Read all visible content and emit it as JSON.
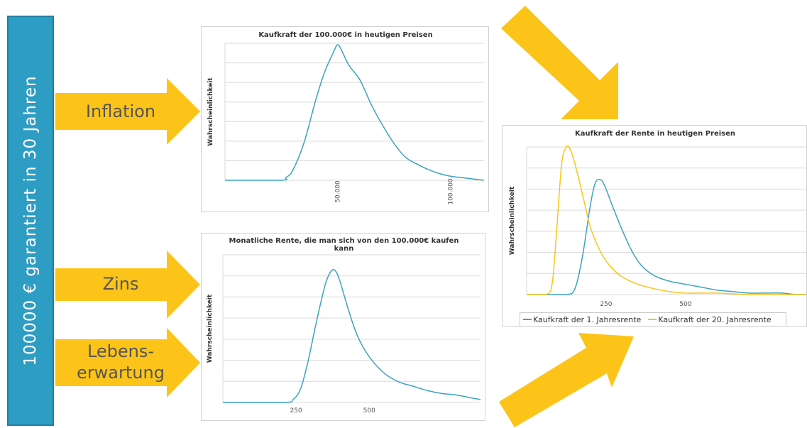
{
  "sidebar": {
    "text": "100000 €  garantiert in 30 Jahren"
  },
  "labels": {
    "inflation": "Inflation",
    "zins": "Zins",
    "lebenserwartung_1": "Lebens-",
    "lebenserwartung_2": "erwartung"
  },
  "colors": {
    "sidebar": "#2e9dc4",
    "arrow": "#fcc419",
    "blue_curve": "#3aa4bf",
    "yellow_curve": "#fcc419",
    "label": "#555555"
  },
  "chart_data": [
    {
      "type": "line",
      "title": "Kaufkraft der 100.000€ in heutigen Preisen",
      "xlabel": "",
      "ylabel": "Wahrscheinlichkeit",
      "xlim": [
        0,
        115000
      ],
      "ylim": [
        0,
        1.0
      ],
      "x_ticks": [
        50000,
        100000
      ],
      "x_tick_labels": [
        "50.000",
        "100.000"
      ],
      "gridlines": "horizontal",
      "series": [
        {
          "color": "#3aa4bf",
          "x": [
            0,
            25000,
            27000,
            30000,
            35000,
            40000,
            44000,
            48000,
            50000,
            52000,
            55000,
            60000,
            65000,
            70000,
            75000,
            80000,
            85000,
            90000,
            95000,
            100000,
            105000,
            110000,
            115000
          ],
          "y": [
            0,
            0,
            0.02,
            0.07,
            0.27,
            0.57,
            0.78,
            0.93,
            0.99,
            0.94,
            0.84,
            0.73,
            0.55,
            0.4,
            0.27,
            0.17,
            0.12,
            0.08,
            0.05,
            0.03,
            0.02,
            0.01,
            0.0
          ]
        }
      ]
    },
    {
      "type": "line",
      "title": "Monatliche Rente, die man sich von den 100.000€ kaufen kann",
      "xlabel": "",
      "ylabel": "Wahrscheinlichkeit",
      "xlim": [
        0,
        880
      ],
      "ylim": [
        0,
        1.0
      ],
      "x_ticks": [
        250,
        500
      ],
      "x_tick_labels": [
        "250",
        "500"
      ],
      "gridlines": "horizontal",
      "series": [
        {
          "color": "#3aa4bf",
          "x": [
            0,
            210,
            240,
            265,
            290,
            320,
            350,
            370,
            385,
            400,
            430,
            460,
            500,
            550,
            600,
            650,
            700,
            750,
            800,
            850,
            880
          ],
          "y": [
            0,
            0,
            0.02,
            0.09,
            0.27,
            0.55,
            0.8,
            0.89,
            0.89,
            0.82,
            0.62,
            0.45,
            0.31,
            0.2,
            0.14,
            0.11,
            0.08,
            0.06,
            0.05,
            0.03,
            0.02
          ]
        }
      ]
    },
    {
      "type": "line",
      "title": "Kaufkraft der Rente in heutigen Preisen",
      "xlabel": "",
      "ylabel": "Wahrscheinlichkeit",
      "xlim": [
        0,
        880
      ],
      "ylim": [
        0,
        1.0
      ],
      "x_ticks": [
        250,
        500
      ],
      "x_tick_labels": [
        "250",
        "500"
      ],
      "gridlines": "horizontal",
      "legend": "bottom",
      "series": [
        {
          "name": "Kaufkraft der 1. Jahresrente",
          "color": "#3aa4bf",
          "x": [
            0,
            120,
            150,
            175,
            200,
            215,
            230,
            245,
            270,
            300,
            330,
            360,
            400,
            450,
            500,
            550,
            600,
            650,
            700,
            750,
            800,
            850,
            880
          ],
          "y": [
            0,
            0,
            0.03,
            0.25,
            0.6,
            0.75,
            0.78,
            0.74,
            0.6,
            0.44,
            0.3,
            0.2,
            0.13,
            0.09,
            0.07,
            0.05,
            0.03,
            0.02,
            0.01,
            0.01,
            0.01,
            0.0,
            0.0
          ]
        },
        {
          "name": "Kaufkraft der 20. Jahresrente",
          "color": "#fcc419",
          "x": [
            0,
            60,
            80,
            95,
            110,
            125,
            140,
            160,
            180,
            200,
            230,
            260,
            300,
            350,
            400,
            450,
            500,
            600,
            700,
            800,
            880
          ],
          "y": [
            0,
            0,
            0.07,
            0.45,
            0.88,
            1.0,
            0.97,
            0.82,
            0.64,
            0.46,
            0.3,
            0.2,
            0.12,
            0.07,
            0.04,
            0.02,
            0.01,
            0.01,
            0.0,
            0.0,
            0.0
          ]
        }
      ]
    }
  ]
}
